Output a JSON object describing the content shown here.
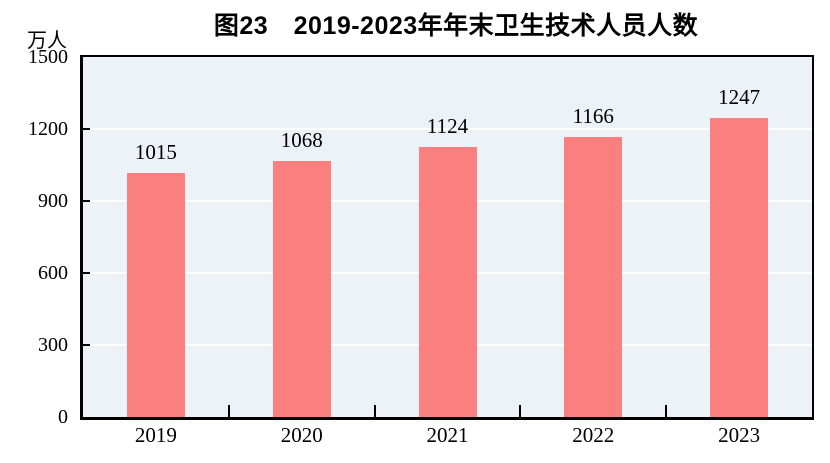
{
  "chart_data": {
    "type": "bar",
    "title": "图23　2019-2023年年末卫生技术人员人数",
    "unit_label": "万人",
    "categories": [
      "2019",
      "2020",
      "2021",
      "2022",
      "2023"
    ],
    "values": [
      1015,
      1068,
      1124,
      1166,
      1247
    ],
    "ylim": [
      0,
      1500
    ],
    "yticks": [
      0,
      300,
      600,
      900,
      1200,
      1500
    ],
    "grid": "horizontal",
    "legend": "none",
    "colors": {
      "bar": "#FA7F7F",
      "plot_background": "#ECF2F8",
      "gridline": "#FFFFFF",
      "axis": "#000000",
      "text": "#000000"
    }
  }
}
